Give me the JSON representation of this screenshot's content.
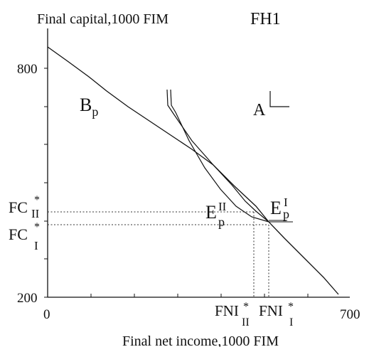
{
  "figure_label": "FH1",
  "y_axis_title": "Final capital,1000 FIM",
  "x_axis_title": "Final net income,1000 FIM",
  "y_ticks": [
    "800",
    "200"
  ],
  "x_ticks": [
    "0",
    "700"
  ],
  "labels": {
    "bp_main": "B",
    "bp_sub": "p",
    "a_label": "A",
    "ep1_main": "E",
    "ep1_sup": "I",
    "ep1_sub": "p",
    "ep2_main": "E",
    "ep2_sup": "II",
    "ep2_sub": "p",
    "fc2_main": "FC",
    "fc2_star": "*",
    "fc2_sub": "II",
    "fc1_main": "FC",
    "fc1_star": "*",
    "fc1_sub": "I",
    "fni2_main": "FNI",
    "fni2_star": "*",
    "fni2_sub": "II",
    "fni1_main": "FNI",
    "fni1_star": "*",
    "fni1_sub": "I"
  }
}
